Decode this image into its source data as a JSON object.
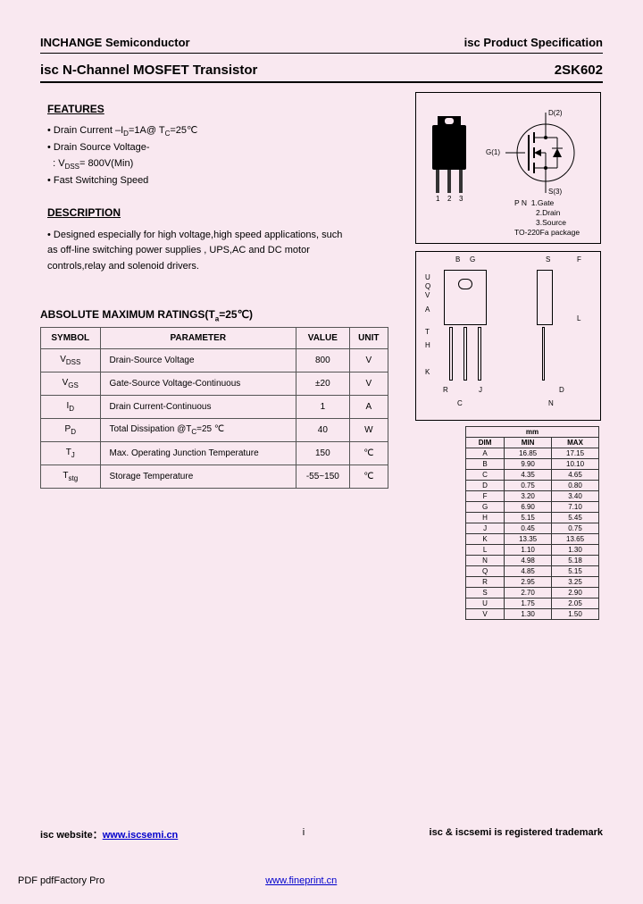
{
  "header": {
    "left": "INCHANGE Semiconductor",
    "right": "isc Product Specification"
  },
  "title": {
    "left": "isc N-Channel MOSFET Transistor",
    "right": "2SK602"
  },
  "features": {
    "heading": "FEATURES",
    "items": [
      "• Drain Current –I_D=1A@ T_C=25℃",
      "• Drain Source Voltage-",
      "  : V_DSS= 800V(Min)",
      "• Fast Switching Speed"
    ]
  },
  "description": {
    "heading": "DESCRIPTION",
    "text": "• Designed especially for high voltage,high speed applications, such as off-line switching power supplies , UPS,AC and DC motor controls,relay and solenoid drivers."
  },
  "ratings": {
    "heading": "ABSOLUTE MAXIMUM RATINGS(T_a=25℃)",
    "columns": [
      "SYMBOL",
      "PARAMETER",
      "VALUE",
      "UNIT"
    ],
    "rows": [
      {
        "symbol": "V_DSS",
        "param": "Drain-Source Voltage",
        "value": "800",
        "unit": "V"
      },
      {
        "symbol": "V_GS",
        "param": "Gate-Source Voltage-Continuous",
        "value": "±20",
        "unit": "V"
      },
      {
        "symbol": "I_D",
        "param": "Drain Current-Continuous",
        "value": "1",
        "unit": "A"
      },
      {
        "symbol": "P_D",
        "param": "Total Dissipation @T_C=25 ℃",
        "value": "40",
        "unit": "W"
      },
      {
        "symbol": "T_J",
        "param": "Max. Operating Junction Temperature",
        "value": "150",
        "unit": "℃"
      },
      {
        "symbol": "T_stg",
        "param": "Storage Temperature",
        "value": "-55~150",
        "unit": "℃"
      }
    ]
  },
  "pinout": {
    "labels": [
      "P N",
      "1.Gate",
      "2.Drain",
      "3.Source",
      "TO-220Fa package"
    ],
    "leads": [
      "1",
      "2",
      "3"
    ],
    "terminals": {
      "g": "G(1)",
      "d": "D(2)",
      "s": "S(3)"
    }
  },
  "dimensions": {
    "header": "mm",
    "cols": [
      "DIM",
      "MIN",
      "MAX"
    ],
    "rows": [
      [
        "A",
        "16.85",
        "17.15"
      ],
      [
        "B",
        "9.90",
        "10.10"
      ],
      [
        "C",
        "4.35",
        "4.65"
      ],
      [
        "D",
        "0.75",
        "0.80"
      ],
      [
        "F",
        "3.20",
        "3.40"
      ],
      [
        "G",
        "6.90",
        "7.10"
      ],
      [
        "H",
        "5.15",
        "5.45"
      ],
      [
        "J",
        "0.45",
        "0.75"
      ],
      [
        "K",
        "13.35",
        "13.65"
      ],
      [
        "L",
        "1.10",
        "1.30"
      ],
      [
        "N",
        "4.98",
        "5.18"
      ],
      [
        "Q",
        "4.85",
        "5.15"
      ],
      [
        "R",
        "2.95",
        "3.25"
      ],
      [
        "S",
        "2.70",
        "2.90"
      ],
      [
        "U",
        "1.75",
        "2.05"
      ],
      [
        "V",
        "1.30",
        "1.50"
      ]
    ]
  },
  "mech_labels": [
    "B",
    "G",
    "S",
    "F",
    "U",
    "Q",
    "V",
    "A",
    "T",
    "H",
    "K",
    "L",
    "R",
    "J",
    "C",
    "D",
    "N"
  ],
  "footer": {
    "left_label": "isc website：",
    "left_link": "www.iscsemi.cn",
    "center": "i",
    "right": "isc & iscsemi is registered trademark"
  },
  "pdf_footer": {
    "left": "PDF pdfFactory Pro",
    "link": "www.fineprint.cn"
  }
}
